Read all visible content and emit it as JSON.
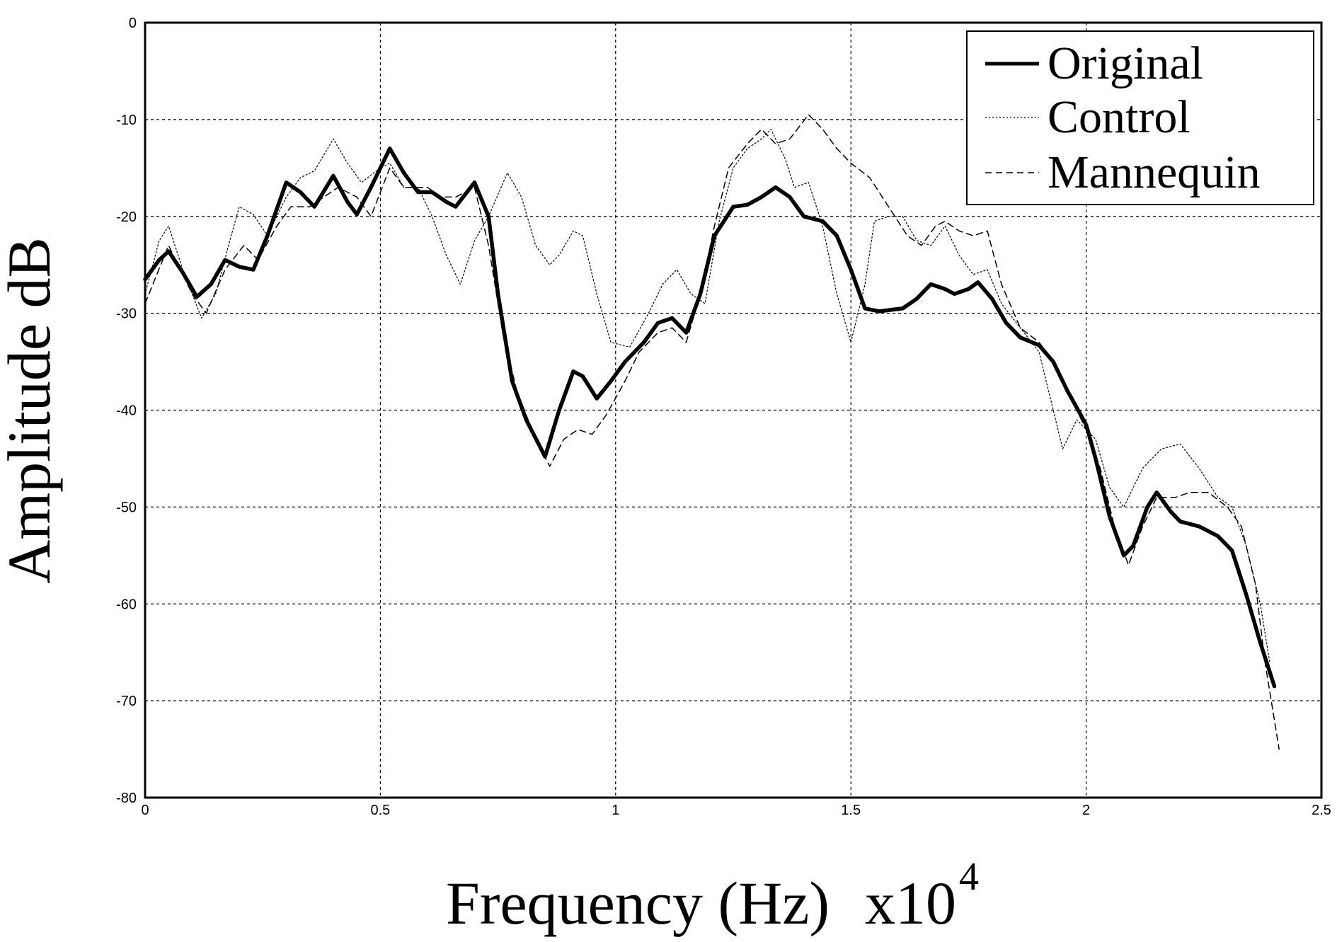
{
  "chart_data": {
    "type": "line",
    "xlabel": "Frequency (Hz)",
    "x_multiplier": "x10",
    "x_multiplier_exp": "4",
    "ylabel": "Amplitude dB",
    "xlim": [
      0,
      2.5
    ],
    "ylim": [
      -80,
      0
    ],
    "grid": true,
    "legend_position": "top-right",
    "x_ticks": [
      "0",
      "0.5",
      "1",
      "1.5",
      "2",
      "2.5"
    ],
    "y_ticks": [
      "0",
      "-10",
      "-20",
      "-30",
      "-40",
      "-50",
      "-60",
      "-70",
      "-80"
    ],
    "series": [
      {
        "name": "Original",
        "style": "solid-thick",
        "points": [
          [
            0,
            -26.5
          ],
          [
            0.03,
            -24.5
          ],
          [
            0.05,
            -23.6
          ],
          [
            0.08,
            -25.8
          ],
          [
            0.11,
            -28.3
          ],
          [
            0.14,
            -27
          ],
          [
            0.17,
            -24.5
          ],
          [
            0.2,
            -25.2
          ],
          [
            0.23,
            -25.5
          ],
          [
            0.26,
            -22
          ],
          [
            0.3,
            -16.5
          ],
          [
            0.33,
            -17.5
          ],
          [
            0.36,
            -19
          ],
          [
            0.4,
            -15.8
          ],
          [
            0.43,
            -18.5
          ],
          [
            0.45,
            -19.8
          ],
          [
            0.48,
            -17
          ],
          [
            0.52,
            -13
          ],
          [
            0.55,
            -15.5
          ],
          [
            0.58,
            -17.5
          ],
          [
            0.61,
            -17.5
          ],
          [
            0.64,
            -18.5
          ],
          [
            0.66,
            -19
          ],
          [
            0.7,
            -16.5
          ],
          [
            0.73,
            -20
          ],
          [
            0.75,
            -28
          ],
          [
            0.78,
            -37
          ],
          [
            0.81,
            -41
          ],
          [
            0.85,
            -44.8
          ],
          [
            0.88,
            -40
          ],
          [
            0.91,
            -36
          ],
          [
            0.93,
            -36.5
          ],
          [
            0.96,
            -38.8
          ],
          [
            0.99,
            -37
          ],
          [
            1.02,
            -35
          ],
          [
            1.06,
            -33
          ],
          [
            1.09,
            -31
          ],
          [
            1.12,
            -30.5
          ],
          [
            1.15,
            -32
          ],
          [
            1.18,
            -28
          ],
          [
            1.21,
            -22
          ],
          [
            1.25,
            -19
          ],
          [
            1.28,
            -18.8
          ],
          [
            1.31,
            -18
          ],
          [
            1.34,
            -17
          ],
          [
            1.37,
            -18
          ],
          [
            1.4,
            -20
          ],
          [
            1.44,
            -20.5
          ],
          [
            1.47,
            -22
          ],
          [
            1.5,
            -25.5
          ],
          [
            1.53,
            -29.5
          ],
          [
            1.56,
            -29.8
          ],
          [
            1.61,
            -29.5
          ],
          [
            1.64,
            -28.5
          ],
          [
            1.67,
            -27
          ],
          [
            1.7,
            -27.5
          ],
          [
            1.72,
            -28
          ],
          [
            1.75,
            -27.5
          ],
          [
            1.77,
            -26.8
          ],
          [
            1.8,
            -28.5
          ],
          [
            1.83,
            -31
          ],
          [
            1.86,
            -32.5
          ],
          [
            1.9,
            -33.3
          ],
          [
            1.93,
            -35
          ],
          [
            1.96,
            -38
          ],
          [
            2.0,
            -41.5
          ],
          [
            2.02,
            -45
          ],
          [
            2.05,
            -51
          ],
          [
            2.08,
            -55
          ],
          [
            2.1,
            -54
          ],
          [
            2.13,
            -50
          ],
          [
            2.15,
            -48.5
          ],
          [
            2.18,
            -50.5
          ],
          [
            2.2,
            -51.5
          ],
          [
            2.24,
            -52
          ],
          [
            2.28,
            -53
          ],
          [
            2.31,
            -54.5
          ],
          [
            2.34,
            -59
          ],
          [
            2.37,
            -64
          ],
          [
            2.4,
            -68.5
          ]
        ]
      },
      {
        "name": "Control",
        "style": "dotted-thin",
        "points": [
          [
            0,
            -28
          ],
          [
            0.03,
            -22.5
          ],
          [
            0.05,
            -21
          ],
          [
            0.08,
            -25.5
          ],
          [
            0.12,
            -30.5
          ],
          [
            0.15,
            -28
          ],
          [
            0.18,
            -22.5
          ],
          [
            0.2,
            -19
          ],
          [
            0.23,
            -19.8
          ],
          [
            0.26,
            -22
          ],
          [
            0.3,
            -18
          ],
          [
            0.33,
            -16
          ],
          [
            0.36,
            -15.3
          ],
          [
            0.4,
            -12
          ],
          [
            0.43,
            -14.5
          ],
          [
            0.46,
            -16.5
          ],
          [
            0.5,
            -15
          ],
          [
            0.52,
            -14.5
          ],
          [
            0.55,
            -17
          ],
          [
            0.58,
            -17
          ],
          [
            0.61,
            -20
          ],
          [
            0.64,
            -24
          ],
          [
            0.67,
            -27
          ],
          [
            0.7,
            -22.5
          ],
          [
            0.73,
            -20
          ],
          [
            0.77,
            -15.5
          ],
          [
            0.8,
            -18
          ],
          [
            0.83,
            -23
          ],
          [
            0.86,
            -25
          ],
          [
            0.88,
            -24
          ],
          [
            0.91,
            -21.5
          ],
          [
            0.93,
            -22
          ],
          [
            0.96,
            -28
          ],
          [
            0.99,
            -33
          ],
          [
            1.03,
            -33.5
          ],
          [
            1.07,
            -30
          ],
          [
            1.1,
            -27
          ],
          [
            1.13,
            -25.5
          ],
          [
            1.16,
            -28
          ],
          [
            1.19,
            -29
          ],
          [
            1.22,
            -20.5
          ],
          [
            1.25,
            -15
          ],
          [
            1.28,
            -13
          ],
          [
            1.31,
            -12
          ],
          [
            1.33,
            -11
          ],
          [
            1.36,
            -14
          ],
          [
            1.38,
            -17
          ],
          [
            1.41,
            -16.5
          ],
          [
            1.44,
            -21
          ],
          [
            1.47,
            -28
          ],
          [
            1.5,
            -33
          ],
          [
            1.53,
            -27
          ],
          [
            1.55,
            -20.5
          ],
          [
            1.58,
            -20
          ],
          [
            1.61,
            -20
          ],
          [
            1.64,
            -22.5
          ],
          [
            1.67,
            -23
          ],
          [
            1.7,
            -21
          ],
          [
            1.73,
            -24
          ],
          [
            1.76,
            -26
          ],
          [
            1.79,
            -25.5
          ],
          [
            1.82,
            -29
          ],
          [
            1.86,
            -31.5
          ],
          [
            1.9,
            -34
          ],
          [
            1.93,
            -40
          ],
          [
            1.95,
            -44
          ],
          [
            1.98,
            -41
          ],
          [
            2.02,
            -43
          ],
          [
            2.05,
            -48
          ],
          [
            2.08,
            -50
          ],
          [
            2.12,
            -46
          ],
          [
            2.16,
            -44
          ],
          [
            2.2,
            -43.5
          ],
          [
            2.24,
            -46
          ],
          [
            2.28,
            -49
          ],
          [
            2.31,
            -50
          ],
          [
            2.34,
            -54
          ],
          [
            2.37,
            -60
          ],
          [
            2.39,
            -66
          ]
        ]
      },
      {
        "name": "Mannequin",
        "style": "dashed-thin",
        "points": [
          [
            0,
            -29
          ],
          [
            0.05,
            -23
          ],
          [
            0.1,
            -28
          ],
          [
            0.13,
            -30
          ],
          [
            0.17,
            -25.5
          ],
          [
            0.21,
            -23
          ],
          [
            0.24,
            -24.5
          ],
          [
            0.28,
            -21
          ],
          [
            0.31,
            -19
          ],
          [
            0.35,
            -19
          ],
          [
            0.38,
            -18
          ],
          [
            0.41,
            -17
          ],
          [
            0.45,
            -18
          ],
          [
            0.48,
            -20
          ],
          [
            0.52,
            -15
          ],
          [
            0.55,
            -17
          ],
          [
            0.6,
            -17
          ],
          [
            0.63,
            -18
          ],
          [
            0.66,
            -18
          ],
          [
            0.7,
            -17
          ],
          [
            0.73,
            -23
          ],
          [
            0.76,
            -32
          ],
          [
            0.79,
            -38
          ],
          [
            0.83,
            -43
          ],
          [
            0.86,
            -45.8
          ],
          [
            0.89,
            -43
          ],
          [
            0.92,
            -42
          ],
          [
            0.95,
            -42.5
          ],
          [
            0.98,
            -40.5
          ],
          [
            1.02,
            -37
          ],
          [
            1.05,
            -34
          ],
          [
            1.09,
            -32
          ],
          [
            1.12,
            -31.5
          ],
          [
            1.15,
            -33
          ],
          [
            1.18,
            -28
          ],
          [
            1.21,
            -21
          ],
          [
            1.24,
            -15
          ],
          [
            1.28,
            -12.5
          ],
          [
            1.31,
            -11
          ],
          [
            1.34,
            -12.5
          ],
          [
            1.37,
            -12
          ],
          [
            1.41,
            -9.5
          ],
          [
            1.44,
            -11
          ],
          [
            1.47,
            -13
          ],
          [
            1.5,
            -14.5
          ],
          [
            1.54,
            -16
          ],
          [
            1.58,
            -19
          ],
          [
            1.62,
            -22
          ],
          [
            1.65,
            -23
          ],
          [
            1.68,
            -21
          ],
          [
            1.7,
            -20.5
          ],
          [
            1.73,
            -21.5
          ],
          [
            1.76,
            -22
          ],
          [
            1.79,
            -21.5
          ],
          [
            1.82,
            -27
          ],
          [
            1.86,
            -31.5
          ],
          [
            1.9,
            -33
          ],
          [
            1.93,
            -35
          ],
          [
            1.96,
            -38
          ],
          [
            2.0,
            -42
          ],
          [
            2.03,
            -46
          ],
          [
            2.06,
            -52
          ],
          [
            2.09,
            -56
          ],
          [
            2.12,
            -52
          ],
          [
            2.15,
            -49
          ],
          [
            2.19,
            -49
          ],
          [
            2.22,
            -48.5
          ],
          [
            2.26,
            -48.5
          ],
          [
            2.3,
            -50
          ],
          [
            2.33,
            -52
          ],
          [
            2.36,
            -58
          ],
          [
            2.38,
            -66
          ],
          [
            2.41,
            -75
          ]
        ]
      }
    ]
  }
}
